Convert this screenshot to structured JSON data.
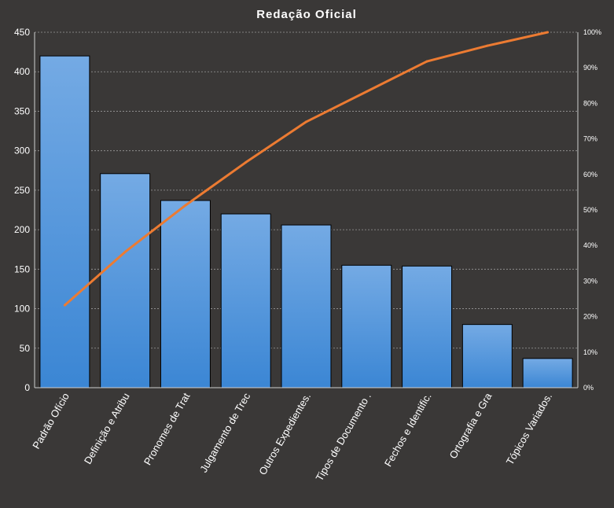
{
  "chart_data": {
    "type": "bar",
    "title": "Redação Oficial",
    "categories": [
      "Padrão Ofício",
      "Definição e Atribu",
      "Pronomes  de Trat",
      "Julgamento de Trec",
      "Outros Expedientes.",
      "Tipos de Documento .",
      "Fechos e Identific.",
      "Ortografia e Gra",
      "Tópicos Variados."
    ],
    "series": [
      {
        "type": "bar",
        "values": [
          420,
          271,
          237,
          220,
          206,
          155,
          154,
          80,
          37
        ],
        "color": "#4f97dc"
      },
      {
        "type": "line",
        "axis": "right",
        "values": [
          0.232,
          0.382,
          0.513,
          0.634,
          0.748,
          0.833,
          0.918,
          0.962,
          1.0
        ],
        "color": "#ec7b32"
      }
    ],
    "ylim": [
      0,
      450
    ],
    "yticks": [
      0,
      50,
      100,
      150,
      200,
      250,
      300,
      350,
      400,
      450
    ],
    "y2lim": [
      0,
      1
    ],
    "y2ticks": [
      "0%",
      "10%",
      "20%",
      "30%",
      "40%",
      "50%",
      "60%",
      "70%",
      "80%",
      "90%",
      "100%"
    ],
    "grid": true,
    "colors": {
      "background": "#3a3837",
      "text": "#ffffff",
      "grid": "#9a9a9a"
    }
  }
}
